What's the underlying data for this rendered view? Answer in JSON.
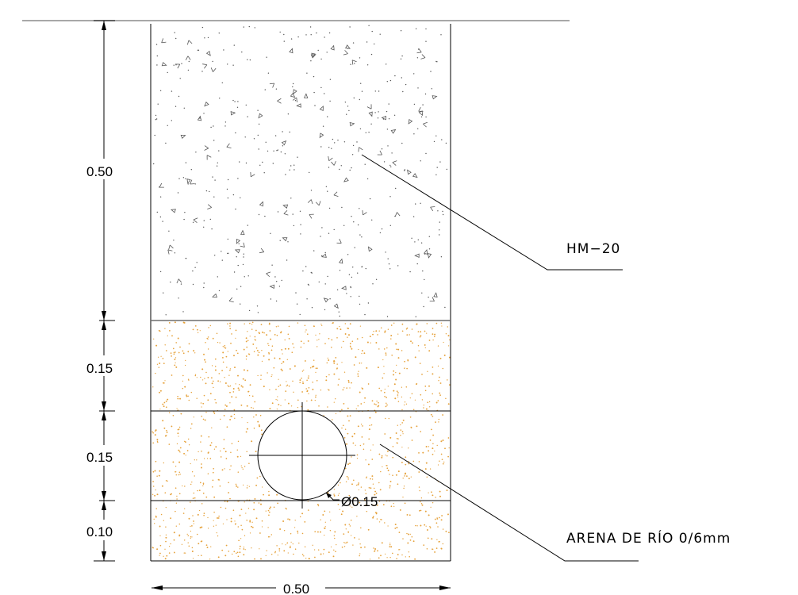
{
  "section": {
    "width_label": "0.50",
    "layers": [
      {
        "key": "concrete",
        "thickness_label": "0.50"
      },
      {
        "key": "sand_top",
        "thickness_label": "0.15"
      },
      {
        "key": "sand_pipe",
        "thickness_label": "0.15"
      },
      {
        "key": "sand_bottom",
        "thickness_label": "0.10"
      }
    ],
    "pipe_label": "Ø0.15"
  },
  "callouts": {
    "concrete": "HM−20",
    "sand": "ARENA DE RÍO 0/6mm"
  },
  "colors": {
    "line": "#000000",
    "ground_line": "#8c8c8c",
    "concrete_dots": "#555555",
    "sand_dots": "#e6a23c"
  }
}
